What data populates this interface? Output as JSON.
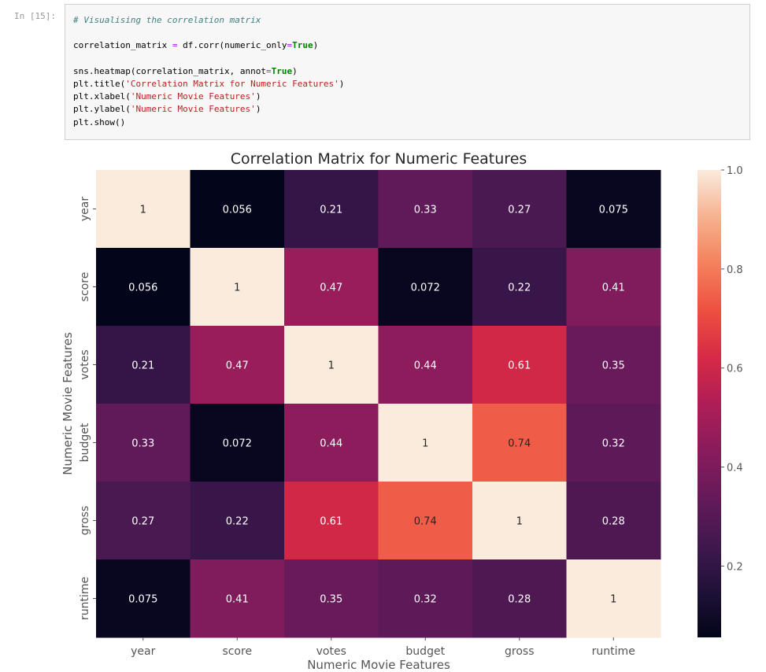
{
  "cell": {
    "prompt": "In [15]:",
    "lines": [
      {
        "comment": "# Visualising the correlation matrix"
      },
      {},
      {
        "a": "correlation_matrix ",
        "op": "=",
        "b": " df.corr(numeric_only",
        "op2": "=",
        "kw": "True",
        "c": ")"
      },
      {},
      {
        "a": "sns.heatmap(correlation_matrix, annot",
        "op": "=",
        "kw": "True",
        "c": ")"
      },
      {
        "a": "plt.title(",
        "str": "'Correlation Matrix for Numeric Features'",
        "c": ")"
      },
      {
        "a": "plt.xlabel(",
        "str": "'Numeric Movie Features'",
        "c": ")"
      },
      {
        "a": "plt.ylabel(",
        "str": "'Numeric Movie Features'",
        "c": ")"
      },
      {
        "a": "plt.show()"
      }
    ]
  },
  "chart_data": {
    "type": "heatmap",
    "title": "Correlation Matrix for Numeric Features",
    "xlabel": "Numeric Movie Features",
    "ylabel": "Numeric Movie Features",
    "rows": [
      "year",
      "score",
      "votes",
      "budget",
      "gross",
      "runtime"
    ],
    "cols": [
      "year",
      "score",
      "votes",
      "budget",
      "gross",
      "runtime"
    ],
    "values": [
      [
        1,
        0.056,
        0.21,
        0.33,
        0.27,
        0.075
      ],
      [
        0.056,
        1,
        0.47,
        0.072,
        0.22,
        0.41
      ],
      [
        0.21,
        0.47,
        1,
        0.44,
        0.61,
        0.35
      ],
      [
        0.33,
        0.072,
        0.44,
        1,
        0.74,
        0.32
      ],
      [
        0.27,
        0.22,
        0.61,
        0.74,
        1,
        0.28
      ],
      [
        0.075,
        0.41,
        0.35,
        0.32,
        0.28,
        1
      ]
    ],
    "annotations": [
      [
        "1",
        "0.056",
        "0.21",
        "0.33",
        "0.27",
        "0.075"
      ],
      [
        "0.056",
        "1",
        "0.47",
        "0.072",
        "0.22",
        "0.41"
      ],
      [
        "0.21",
        "0.47",
        "1",
        "0.44",
        "0.61",
        "0.35"
      ],
      [
        "0.33",
        "0.072",
        "0.44",
        "1",
        "0.74",
        "0.32"
      ],
      [
        "0.27",
        "0.22",
        "0.61",
        "0.74",
        "1",
        "0.28"
      ],
      [
        "0.075",
        "0.41",
        "0.35",
        "0.32",
        "0.28",
        "1"
      ]
    ],
    "vmin": 0.056,
    "vmax": 1.0,
    "colormap": "rocket",
    "colorbar_ticks": [
      "0.2",
      "0.4",
      "0.6",
      "0.8",
      "1.0"
    ],
    "colorbar_tick_values": [
      0.2,
      0.4,
      0.6,
      0.8,
      1.0
    ],
    "text_color_light": "#ffffff",
    "text_color_dark": "#262626",
    "label_color": "#555555",
    "title_color": "#262626"
  }
}
